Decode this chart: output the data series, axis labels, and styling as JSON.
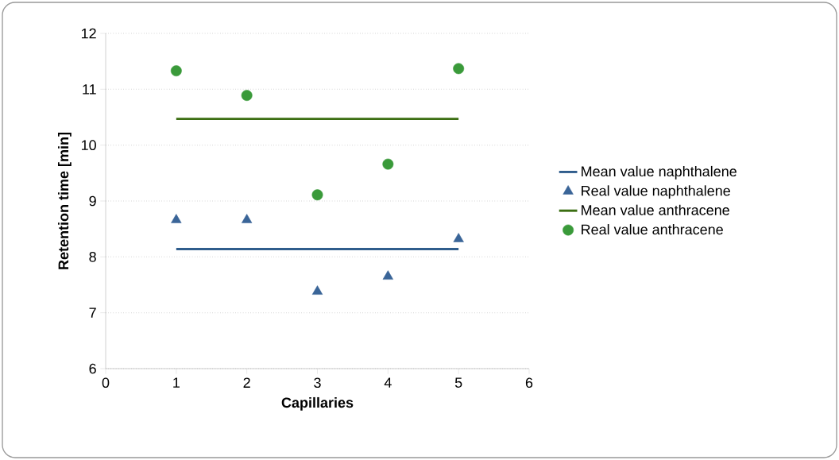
{
  "chart_data": {
    "type": "scatter",
    "xlabel": "Capillaries",
    "ylabel": "Retention time [min]",
    "xlim": [
      0,
      6
    ],
    "xticks": [
      0,
      1,
      2,
      3,
      4,
      5,
      6
    ],
    "ylim": [
      6,
      12
    ],
    "yticks": [
      6,
      7,
      8,
      9,
      10,
      11,
      12
    ],
    "grid": "y",
    "legend": "right",
    "series": [
      {
        "name": "Mean value naphthalene",
        "type": "line",
        "marker": "none",
        "color": "#2f5d8c",
        "x": [
          1,
          5
        ],
        "values": [
          8.14,
          8.14
        ]
      },
      {
        "name": "Real value naphthalene",
        "marker": "triangle",
        "color": "#3a6598",
        "x": [
          1,
          2,
          3,
          4,
          5
        ],
        "values": [
          8.66,
          8.66,
          7.38,
          7.65,
          8.32
        ]
      },
      {
        "name": "Mean value anthracene",
        "type": "line",
        "marker": "none",
        "color": "#3b6e12",
        "x": [
          1,
          5
        ],
        "values": [
          10.47,
          10.47
        ]
      },
      {
        "name": "Real value anthracene",
        "marker": "circle",
        "color": "#3a9a3a",
        "x": [
          1,
          2,
          3,
          4,
          5
        ],
        "values": [
          11.33,
          10.89,
          9.11,
          9.66,
          11.37
        ]
      }
    ]
  }
}
